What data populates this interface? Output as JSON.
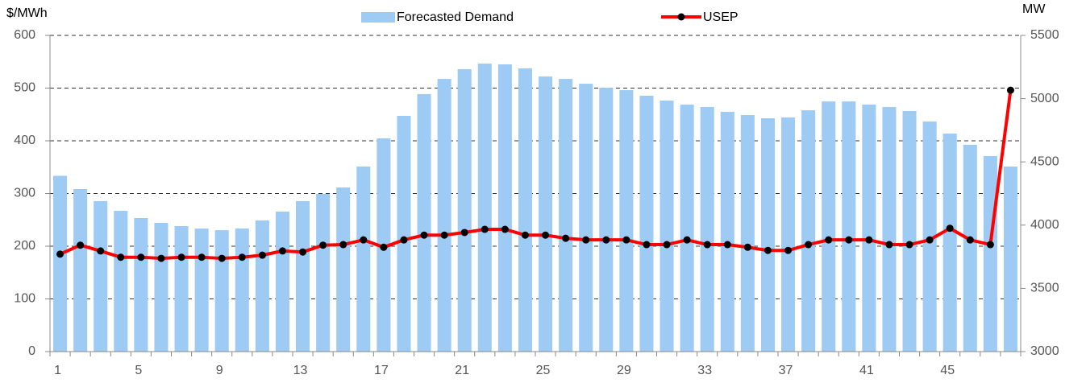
{
  "chart_data": {
    "type": "combo",
    "y_label": "$/MWh",
    "y2_label": "MW",
    "categories": [
      "1",
      null,
      null,
      null,
      "5",
      null,
      null,
      null,
      "9",
      null,
      null,
      null,
      "13",
      null,
      null,
      null,
      "17",
      null,
      null,
      null,
      "21",
      null,
      null,
      null,
      "25",
      null,
      null,
      null,
      "29",
      null,
      null,
      null,
      "33",
      null,
      null,
      null,
      "37",
      null,
      null,
      null,
      "41",
      null,
      null,
      null,
      "45",
      null,
      null,
      null
    ],
    "series": [
      {
        "name": "Forecasted Demand",
        "type": "bar",
        "axis": "y2",
        "color": "#9ecbf4",
        "values": [
          4390,
          4285,
          4190,
          4113,
          4056,
          4018,
          3992,
          3973,
          3960,
          3973,
          4037,
          4107,
          4190,
          4247,
          4298,
          4463,
          4686,
          4864,
          5036,
          5156,
          5233,
          5277,
          5271,
          5239,
          5175,
          5156,
          5118,
          5086,
          5067,
          5023,
          4985,
          4953,
          4934,
          4896,
          4870,
          4845,
          4851,
          4908,
          4978,
          4978,
          4953,
          4934,
          4902,
          4819,
          4724,
          4635,
          4546,
          4463
        ]
      },
      {
        "name": "USEP",
        "type": "line",
        "color": "#ff0000",
        "marker_color": "#000000",
        "values": [
          185,
          202,
          191,
          179,
          179,
          177,
          179,
          179,
          177,
          179,
          183,
          191,
          189,
          202,
          203,
          212,
          198,
          212,
          221,
          221,
          226,
          232,
          232,
          221,
          221,
          215,
          212,
          212,
          212,
          203,
          203,
          212,
          203,
          203,
          198,
          192,
          192,
          203,
          212,
          212,
          212,
          203,
          203,
          212,
          234,
          212,
          203,
          496
        ]
      }
    ],
    "ylim": [
      0,
      600
    ],
    "yticks": [
      0,
      100,
      200,
      300,
      400,
      500,
      600
    ],
    "y2lim": [
      3000,
      5500
    ],
    "y2ticks": [
      3000,
      3500,
      4000,
      4500,
      5000,
      5500
    ],
    "grid": true,
    "legend": "top"
  }
}
